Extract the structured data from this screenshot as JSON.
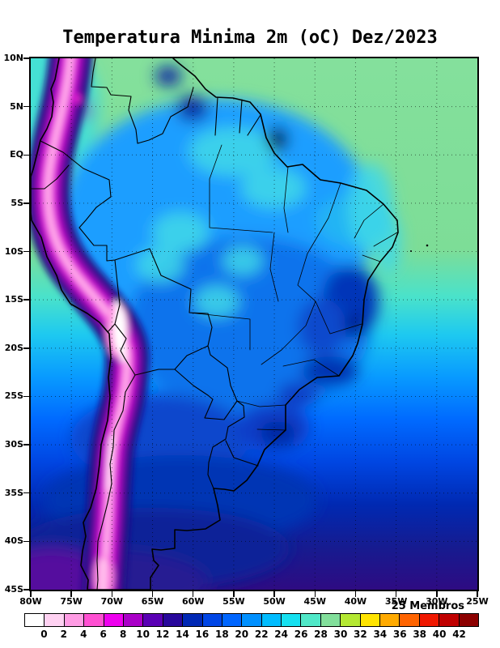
{
  "title": "Temperatura Minima 2m (oC) Dez/2023",
  "axes": {
    "lat_labels": [
      "10N",
      "5N",
      "EQ",
      "5S",
      "10S",
      "15S",
      "20S",
      "25S",
      "30S",
      "35S",
      "40S",
      "45S"
    ],
    "lon_labels": [
      "80W",
      "75W",
      "70W",
      "65W",
      "60W",
      "55W",
      "50W",
      "45W",
      "40W",
      "35W",
      "30W",
      "25W"
    ]
  },
  "colorbar": {
    "members_label": "25 Membros",
    "values": [
      "0",
      "2",
      "4",
      "6",
      "8",
      "10",
      "12",
      "14",
      "16",
      "18",
      "20",
      "22",
      "24",
      "26",
      "28",
      "30",
      "32",
      "34",
      "36",
      "38",
      "40",
      "42"
    ],
    "colors": [
      "#ffffff",
      "#ffd2f2",
      "#ff9ce4",
      "#ff50d2",
      "#ee00ee",
      "#aa00c8",
      "#5a00b4",
      "#28089b",
      "#0028b4",
      "#0046e6",
      "#0066ff",
      "#0090ff",
      "#00bcff",
      "#16e0f0",
      "#50e8c8",
      "#82df9b",
      "#b4e832",
      "#ffe400",
      "#ffaa00",
      "#ff6400",
      "#f01800",
      "#c00000",
      "#8c0000"
    ]
  }
}
